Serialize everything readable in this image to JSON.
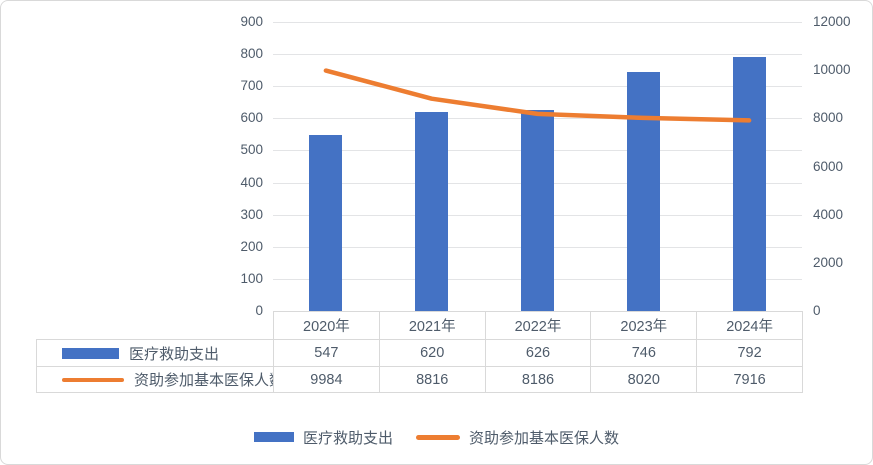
{
  "chart_data": {
    "type": "combo",
    "categories": [
      "2020年",
      "2021年",
      "2022年",
      "2023年",
      "2024年"
    ],
    "series": [
      {
        "name": "医疗救助支出",
        "type": "bar",
        "axis": "left",
        "color": "#4472C4",
        "values": [
          547,
          620,
          626,
          746,
          792
        ]
      },
      {
        "name": "资助参加基本医保人数",
        "type": "line",
        "axis": "right",
        "color": "#ED7D31",
        "values": [
          9984,
          8816,
          8186,
          8020,
          7916
        ]
      }
    ],
    "left_axis": {
      "min": 0,
      "max": 900,
      "step": 100
    },
    "right_axis": {
      "min": 0,
      "max": 12000,
      "step": 2000
    },
    "grid": true,
    "legend_position": "bottom",
    "data_table_shown": true
  },
  "styles": {
    "bar_color": "#4472C4",
    "line_color": "#ED7D31",
    "grid_color": "#e3e4e6",
    "table_border_color": "#d9d9d9",
    "text_color": "#4e5b6a",
    "background": "#ffffff"
  }
}
